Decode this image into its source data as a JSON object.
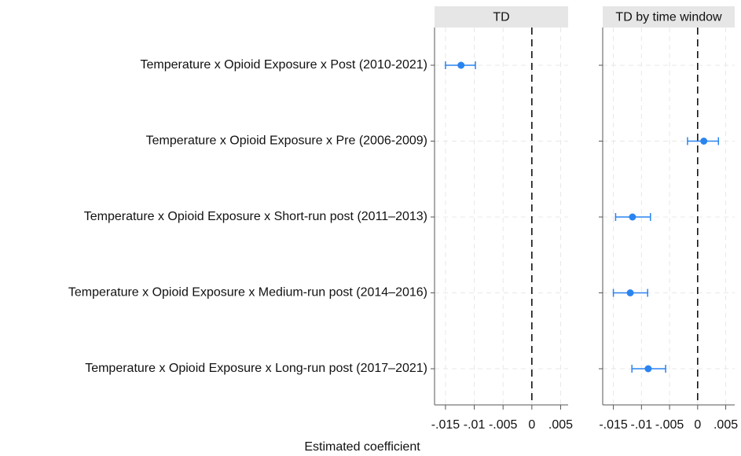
{
  "chart_data": [
    {
      "type": "errorbar",
      "title": "TD",
      "xlabel": "Estimated coefficient",
      "categories": [
        "Temperature x Opioid Exposure x Post (2010-2021)",
        "Temperature x Opioid Exposure  x Pre (2006-2009)",
        "Temperature x Opioid Exposure  x Short-run post (2011–2013)",
        "Temperature x Opioid Exposure  x Medium-run post (2014–2016)",
        "Temperature x Opioid Exposure  x Long-run post (2017–2021)"
      ],
      "values": [
        -0.0123,
        null,
        null,
        null,
        null
      ],
      "lower": [
        -0.015,
        null,
        null,
        null,
        null
      ],
      "upper": [
        -0.0098,
        null,
        null,
        null,
        null
      ],
      "color": "#2a84f0",
      "xlim": [
        -0.0169,
        0.0063
      ],
      "xticks": [
        {
          "value": -0.015,
          "label": "-.015"
        },
        {
          "value": -0.01,
          "label": "-.01"
        },
        {
          "value": -0.005,
          "label": "-.005"
        },
        0,
        {
          "value": 0.005,
          "label": ".005"
        }
      ],
      "grid": true
    },
    {
      "type": "errorbar",
      "title": "TD by time window",
      "values": [
        null,
        0.0011,
        -0.0116,
        -0.012,
        -0.0088
      ],
      "lower": [
        null,
        -0.0018,
        -0.0146,
        -0.015,
        -0.0117
      ],
      "upper": [
        null,
        0.0037,
        -0.0084,
        -0.0089,
        -0.0057
      ],
      "color": "#2a84f0",
      "xlim": [
        -0.0169,
        0.0066
      ],
      "xticks": [
        {
          "value": -0.015,
          "label": "-.015"
        },
        {
          "value": -0.01,
          "label": "-.01"
        },
        {
          "value": -0.005,
          "label": "-.005"
        },
        0,
        {
          "value": 0.005,
          "label": ".005"
        }
      ],
      "grid": true
    }
  ]
}
